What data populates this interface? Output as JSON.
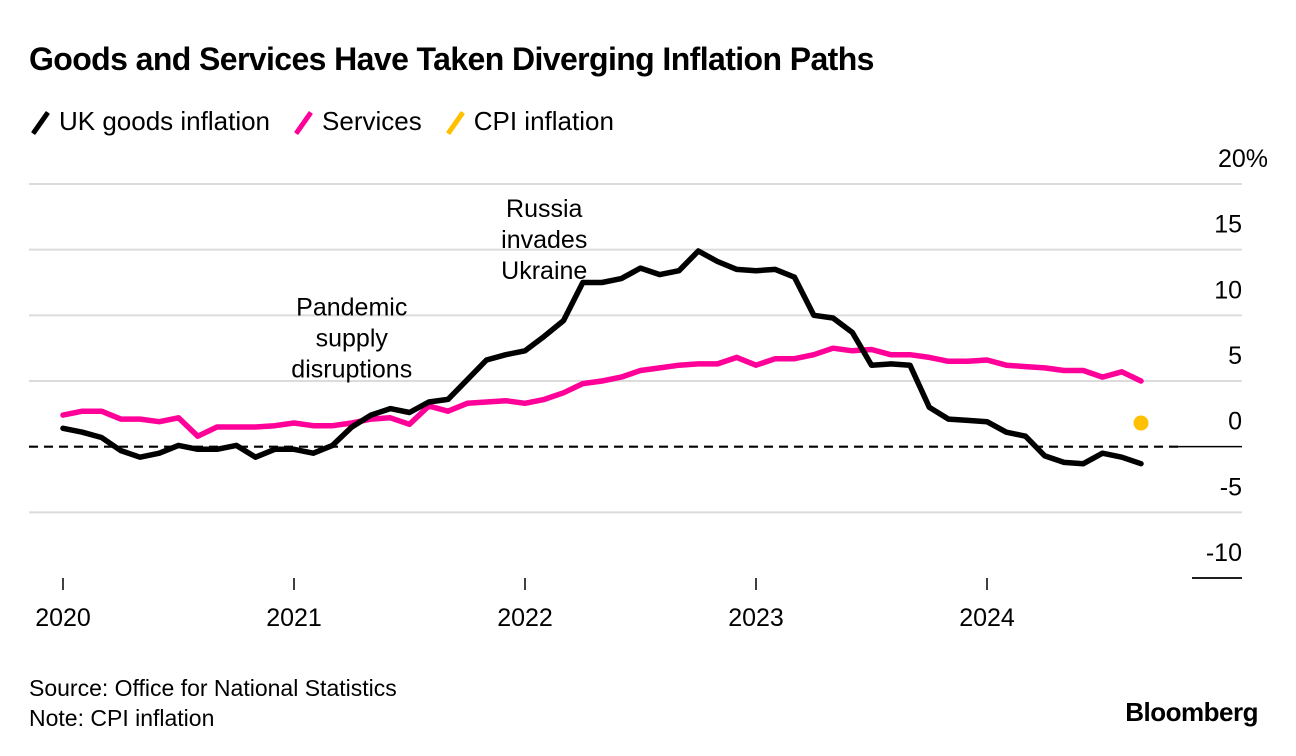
{
  "chart_data": {
    "type": "line",
    "title": "Goods and Services Have Taken Diverging Inflation Paths",
    "xlabel": "",
    "ylabel": "",
    "y_unit": "%",
    "ylim": [
      -10,
      20
    ],
    "yticks": [
      20,
      15,
      10,
      5,
      0,
      -5,
      -10
    ],
    "ytick_labels": [
      "20%",
      "15",
      "10",
      "5",
      "0",
      "-5",
      "-10"
    ],
    "xticks": [
      "2020",
      "2021",
      "2022",
      "2023",
      "2024"
    ],
    "x_start": "2020-01",
    "x_end": "2024-09",
    "x_frequency": "monthly",
    "grid": true,
    "zero_line": "dashed",
    "legend_position": "top-left",
    "series": [
      {
        "name": "UK goods inflation",
        "color": "#000000",
        "values": [
          1.4,
          1.1,
          0.7,
          -0.3,
          -0.8,
          -0.5,
          0.1,
          -0.2,
          -0.2,
          0.1,
          -0.8,
          -0.2,
          -0.2,
          -0.5,
          0.1,
          1.5,
          2.4,
          2.9,
          2.6,
          3.4,
          3.6,
          5.1,
          6.6,
          7.0,
          7.3,
          8.4,
          9.6,
          12.5,
          12.5,
          12.8,
          13.6,
          13.1,
          13.4,
          14.9,
          14.1,
          13.5,
          13.4,
          13.5,
          12.9,
          10.0,
          9.8,
          8.7,
          6.2,
          6.3,
          6.2,
          3.0,
          2.1,
          2.0,
          1.9,
          1.1,
          0.8,
          -0.7,
          -1.2,
          -1.3,
          -0.5,
          -0.8,
          -1.3
        ]
      },
      {
        "name": "Services",
        "color": "#ff0099",
        "values": [
          2.4,
          2.7,
          2.7,
          2.1,
          2.1,
          1.9,
          2.2,
          0.8,
          1.5,
          1.5,
          1.5,
          1.6,
          1.8,
          1.6,
          1.6,
          1.8,
          2.1,
          2.2,
          1.7,
          3.1,
          2.7,
          3.3,
          3.4,
          3.5,
          3.3,
          3.6,
          4.1,
          4.8,
          5.0,
          5.3,
          5.8,
          6.0,
          6.2,
          6.3,
          6.3,
          6.8,
          6.2,
          6.7,
          6.7,
          7.0,
          7.5,
          7.3,
          7.4,
          7.0,
          7.0,
          6.8,
          6.5,
          6.5,
          6.6,
          6.2,
          6.1,
          6.0,
          5.8,
          5.8,
          5.3,
          5.7,
          5.0
        ]
      },
      {
        "name": "CPI inflation",
        "color": "#ffc000",
        "type": "point",
        "points": [
          {
            "x": "2024-09",
            "y": 1.8
          }
        ]
      }
    ],
    "annotations": [
      {
        "lines": [
          "Pandemic",
          "supply",
          "disruptions"
        ],
        "x": "2021-04",
        "y": 10.0
      },
      {
        "lines": [
          "Russia",
          "invades",
          "Ukraine"
        ],
        "x": "2022-02",
        "y": 17.5
      }
    ]
  },
  "footer": {
    "source": "Source: Office for National Statistics",
    "note": "Note: CPI inflation",
    "brand": "Bloomberg"
  }
}
